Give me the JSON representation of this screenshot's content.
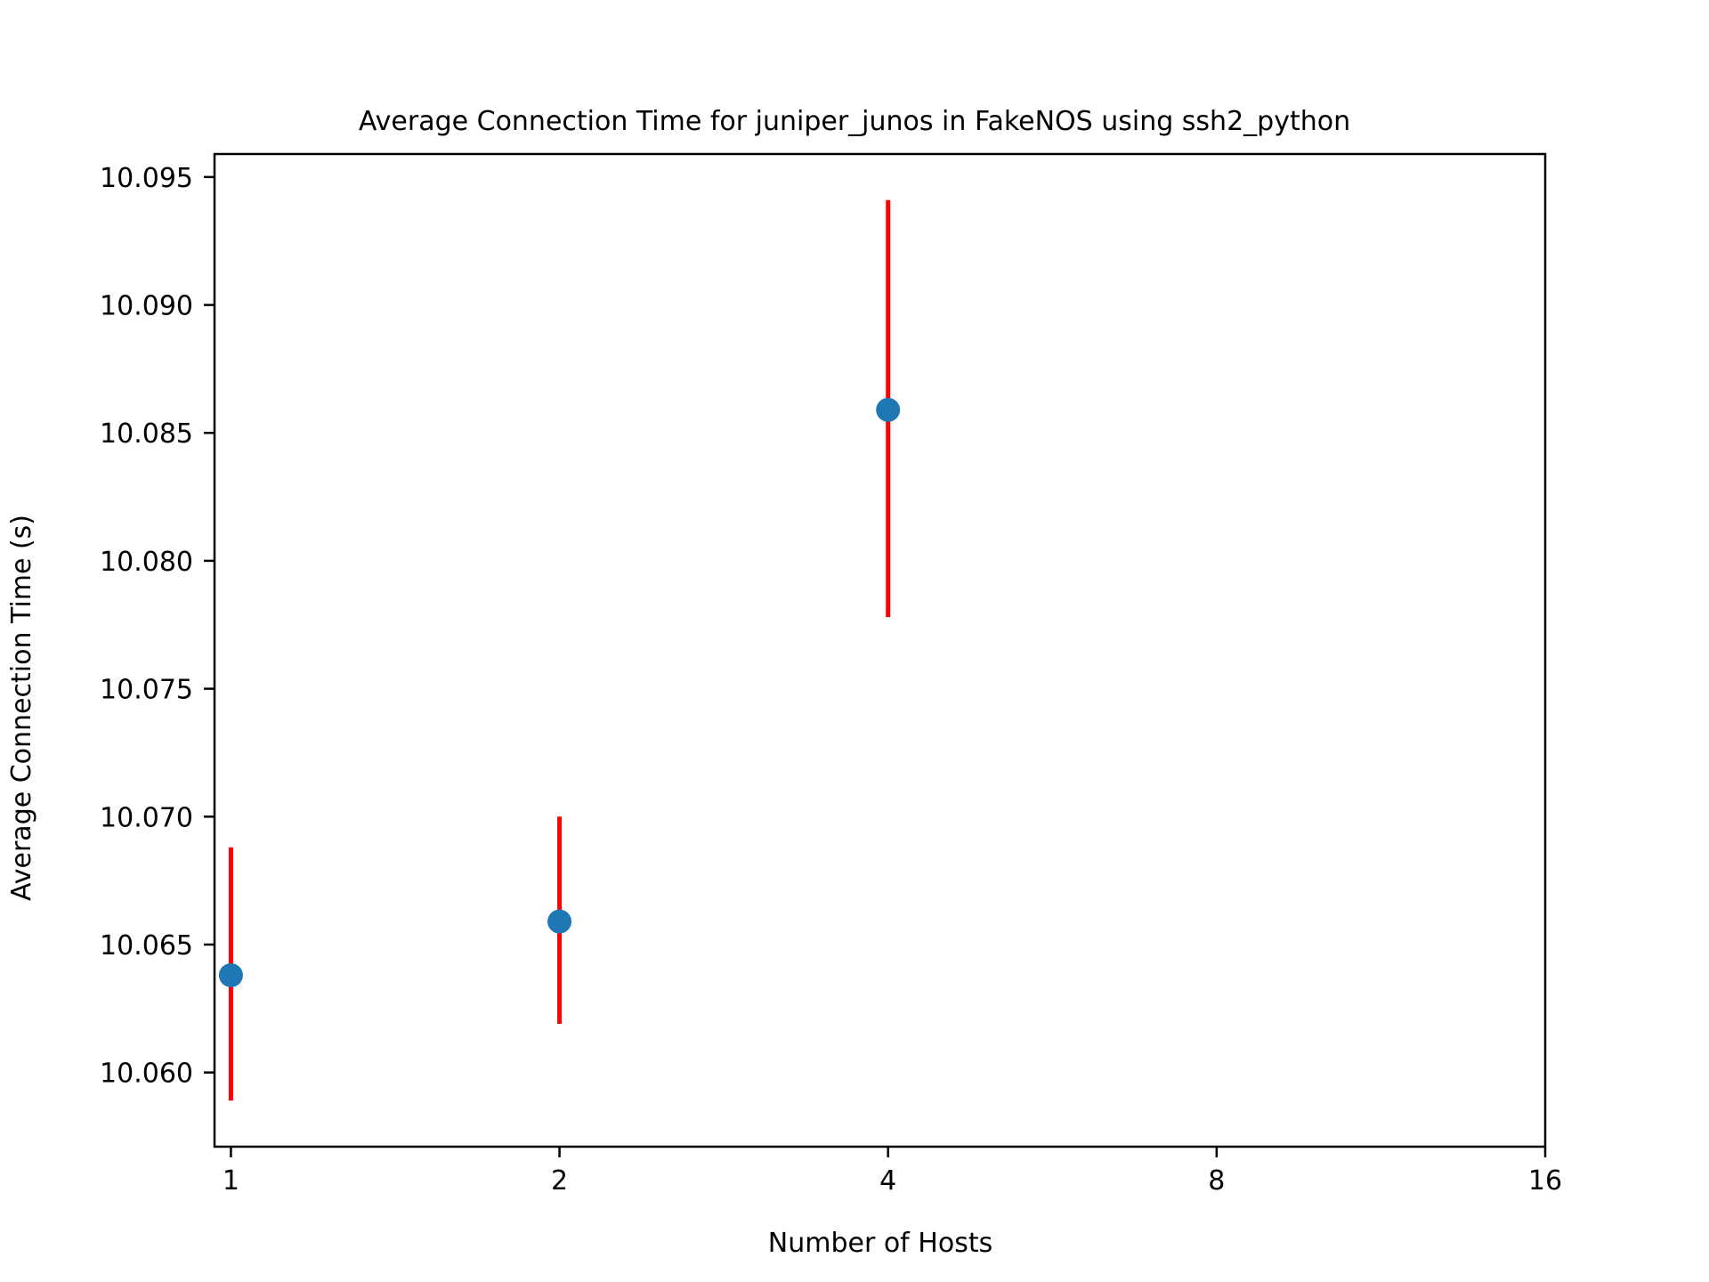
{
  "chart_data": {
    "type": "scatter",
    "title": "Average Connection Time for juniper_junos in FakeNOS using ssh2_python",
    "xlabel": "Number of Hosts",
    "ylabel": "Average Connection Time (s)",
    "x_scale": "log2",
    "xlim": [
      0.966,
      16
    ],
    "ylim": [
      10.0571,
      10.0959
    ],
    "x_ticks": [
      "1",
      "2",
      "4",
      "8",
      "16"
    ],
    "y_ticks": [
      "10.060",
      "10.065",
      "10.070",
      "10.075",
      "10.080",
      "10.085",
      "10.090",
      "10.095"
    ],
    "grid": false,
    "series": [
      {
        "x": [
          1,
          2,
          4
        ],
        "y": [
          10.0638,
          10.0659,
          10.0859
        ],
        "err_low": [
          10.0589,
          10.0619,
          10.0778
        ],
        "err_high": [
          10.0688,
          10.07,
          10.0941
        ]
      }
    ],
    "colors": {
      "marker": "#1f77b4",
      "errorbar": "#ff0000"
    }
  }
}
